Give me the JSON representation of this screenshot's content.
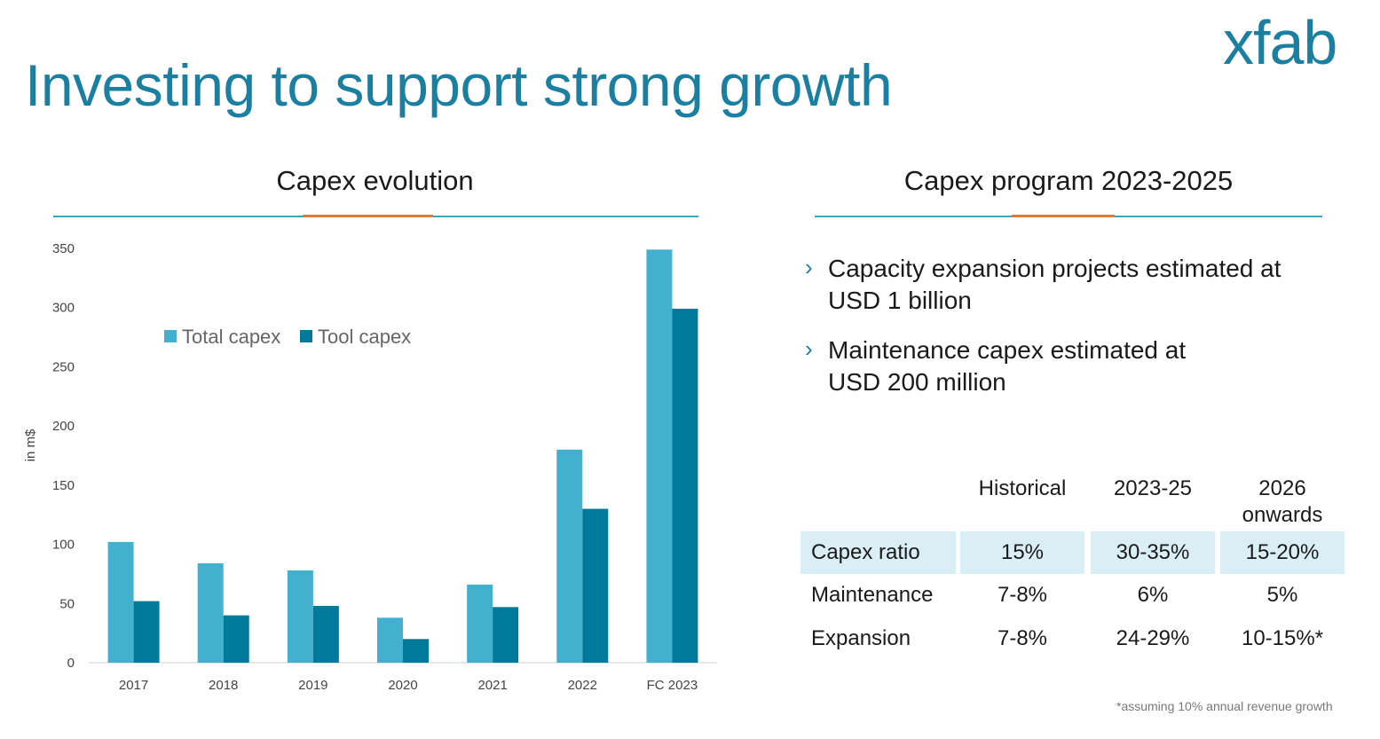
{
  "title": "Investing to support strong growth",
  "logo_text": "xfab",
  "left_section": {
    "title": "Capex evolution"
  },
  "right_section": {
    "title": "Capex program 2023-2025",
    "bullets": [
      {
        "line1": "Capacity expansion projects estimated at",
        "line2": "USD 1 billion"
      },
      {
        "line1": "Maintenance capex estimated at",
        "line2": "USD 200 million"
      }
    ]
  },
  "table": {
    "headers": [
      "Historical",
      "2023-25",
      "2026",
      "onwards"
    ],
    "rows": [
      {
        "label": "Capex ratio",
        "values": [
          "15%",
          "30-35%",
          "15-20%"
        ]
      },
      {
        "label": "Maintenance",
        "values": [
          "7-8%",
          "6%",
          "5%"
        ]
      },
      {
        "label": "Expansion",
        "values": [
          "7-8%",
          "24-29%",
          "10-15%*"
        ]
      }
    ],
    "footnote": "*assuming 10% annual revenue growth"
  },
  "colors": {
    "total": "#44b0cf",
    "tool": "#007a9a",
    "accent": "#e07a3a",
    "brand": "#1a7fa0"
  },
  "chart_data": {
    "type": "bar",
    "title": "Capex evolution",
    "ylabel": "in m$",
    "xlabel": "",
    "ylim": [
      0,
      350
    ],
    "yticks": [
      0,
      50,
      100,
      150,
      200,
      250,
      300,
      350
    ],
    "categories": [
      "2017",
      "2018",
      "2019",
      "2020",
      "2021",
      "2022",
      "FC 2023"
    ],
    "series": [
      {
        "name": "Total capex",
        "values": [
          102,
          84,
          78,
          38,
          66,
          180,
          349
        ]
      },
      {
        "name": "Tool capex",
        "values": [
          52,
          40,
          48,
          20,
          47,
          130,
          299
        ]
      }
    ],
    "legend": "top-left",
    "grid": false
  }
}
